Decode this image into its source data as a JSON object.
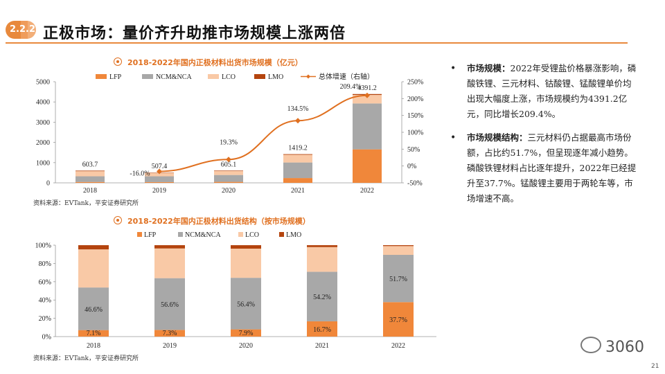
{
  "header": {
    "badge": "2.2.2",
    "title": "正极市场：量价齐升助推市场规模上涨两倍"
  },
  "colors": {
    "accent": "#e8893c",
    "lfp": "#f0873a",
    "ncm": "#a8a8a8",
    "lco": "#f9c9a6",
    "lmo": "#b4440e",
    "line": "#e07020"
  },
  "chart_data": [
    {
      "type": "bar",
      "title": "2018-2022年国内正极材料出货市场规模（亿元）",
      "categories": [
        "2018",
        "2019",
        "2020",
        "2021",
        "2022"
      ],
      "legend": [
        "LFP",
        "NCM&NCA",
        "LCO",
        "LMO",
        "总体增速（右轴）"
      ],
      "series": [
        {
          "name": "LFP",
          "values": [
            43,
            37,
            48,
            237,
            1656
          ]
        },
        {
          "name": "NCM&NCA",
          "values": [
            281,
            287,
            341,
            769,
            2270
          ]
        },
        {
          "name": "LCO",
          "values": [
            252,
            165,
            193,
            383,
            421
          ]
        },
        {
          "name": "LMO",
          "values": [
            28,
            18,
            23,
            30,
            44
          ]
        }
      ],
      "totals": [
        603.7,
        507.4,
        605.1,
        1419.2,
        4391.2
      ],
      "total_labels": [
        "603.7",
        "507.4",
        "605.1",
        "1419.2",
        "4391.2"
      ],
      "growth": [
        null,
        -16.0,
        19.3,
        134.5,
        209.4
      ],
      "growth_labels": [
        "",
        "-16.0%",
        "19.3%",
        "134.5%",
        "209.4%"
      ],
      "ylim": [
        0,
        5000
      ],
      "yticks": [
        "0",
        "1000",
        "2000",
        "3000",
        "4000",
        "5000"
      ],
      "y2lim": [
        -50,
        250
      ],
      "y2ticks": [
        "-50%",
        "0%",
        "50%",
        "100%",
        "150%",
        "200%",
        "250%"
      ],
      "source": "资料来源：EVTank，平安证券研究所"
    },
    {
      "type": "bar",
      "stacked_percent": true,
      "title": "2018-2022年国内正极材料出货结构（按市场规模）",
      "categories": [
        "2018",
        "2019",
        "2020",
        "2021",
        "2022"
      ],
      "legend": [
        "LFP",
        "NCM&NCA",
        "LCO",
        "LMO"
      ],
      "series": [
        {
          "name": "LFP",
          "values": [
            7.1,
            7.3,
            7.9,
            16.7,
            37.7
          ]
        },
        {
          "name": "NCM&NCA",
          "values": [
            46.6,
            56.6,
            56.4,
            54.2,
            51.7
          ]
        },
        {
          "name": "LCO",
          "values": [
            41.7,
            32.5,
            31.9,
            27.0,
            9.6
          ]
        },
        {
          "name": "LMO",
          "values": [
            4.6,
            3.6,
            3.8,
            2.1,
            1.0
          ]
        }
      ],
      "lfp_labels": [
        "7.1%",
        "7.3%",
        "7.9%",
        "16.7%",
        "37.7%"
      ],
      "ncm_labels": [
        "46.6%",
        "56.6%",
        "56.4%",
        "54.2%",
        "51.7%"
      ],
      "ylim": [
        0,
        100
      ],
      "yticks": [
        "0%",
        "20%",
        "40%",
        "60%",
        "80%",
        "100%"
      ],
      "source": "资料来源：EVTank，平安证券研究所"
    }
  ],
  "bullets": [
    {
      "lead": "市场规模：",
      "text": "2022年受锂盐价格暴涨影响，磷酸铁锂、三元材料、钴酸锂、锰酸锂单价均出现大幅度上涨，市场规模约为4391.2亿元，同比增长209.4%。"
    },
    {
      "lead": "市场规模结构：",
      "text": "三元材料仍占据最高市场份额，占比约51.7%，但呈现逐年减小趋势。磷酸铁锂材料占比逐年提升，2022年已经提升至37.7%。锰酸锂主要用于两轮车等，市场增速不高。"
    }
  ],
  "watermark": "3060",
  "page_number": "21"
}
